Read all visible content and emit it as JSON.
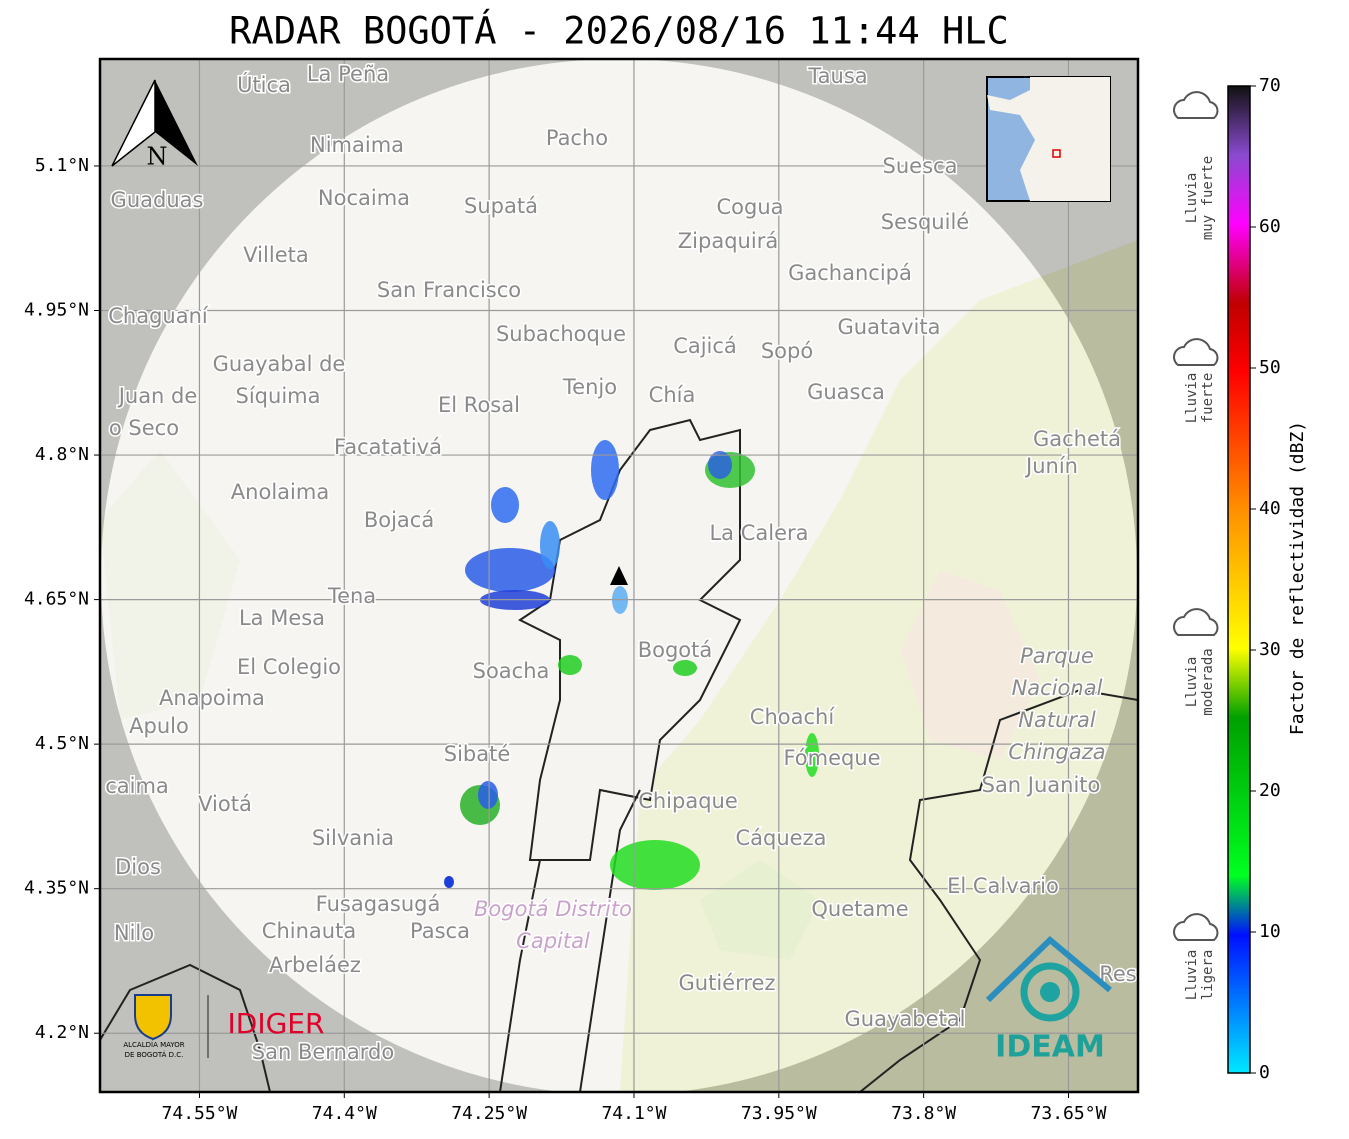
{
  "title": "RADAR BOGOTÁ - 2026/08/16 11:44 HLC",
  "map": {
    "xlim": [
      -74.653,
      -73.578
    ],
    "ylim": [
      4.139,
      5.211
    ],
    "xticks": [
      {
        "value": -74.55,
        "label": "74.55°W"
      },
      {
        "value": -74.4,
        "label": "74.4°W"
      },
      {
        "value": -74.25,
        "label": "74.25°W"
      },
      {
        "value": -74.1,
        "label": "74.1°W"
      },
      {
        "value": -73.95,
        "label": "73.95°W"
      },
      {
        "value": -73.8,
        "label": "73.8°W"
      },
      {
        "value": -73.65,
        "label": "73.65°W"
      }
    ],
    "yticks": [
      {
        "value": 5.1,
        "label": "5.1°N"
      },
      {
        "value": 4.95,
        "label": "4.95°N"
      },
      {
        "value": 4.8,
        "label": "4.8°N"
      },
      {
        "value": 4.65,
        "label": "4.65°N"
      },
      {
        "value": 4.5,
        "label": "4.5°N"
      },
      {
        "value": 4.35,
        "label": "4.35°N"
      },
      {
        "value": 4.2,
        "label": "4.2°N"
      }
    ],
    "grid": true,
    "north_label": "N",
    "places": [
      "Útica",
      "La Peña",
      "Tausa",
      "Pacho",
      "Nimaima",
      "Guaduas",
      "Nocaima",
      "Supatá",
      "Cogua",
      "Suesca",
      "Sesquilé",
      "Zipaquirá",
      "Villeta",
      "Gachancipá",
      "San Francisco",
      "Chaguaní",
      "Guatavita",
      "Subachoque",
      "Cajicá",
      "Sopó",
      "Guayabal de",
      "Síquima",
      "Tenjo",
      "Chía",
      "Guasca",
      "Juan de",
      "o Seco",
      "El Rosal",
      "Facatativá",
      "Gachetá",
      "Junín",
      "Anolaima",
      "Bojacá",
      "La Calera",
      "Tena",
      "La Mesa",
      "El Colegio",
      "Soacha",
      "Bogotá",
      "Anapoima",
      "Apulo",
      "Choachí",
      "Fómeque",
      "Sibaté",
      "San Juanito",
      "caima",
      "Viotá",
      "Chipaque",
      "Silvania",
      "Cáqueza",
      "Dios",
      "El Calvario",
      "Fusagasugá",
      "Quetame",
      "Nilo",
      "Chinauta",
      "Pasca",
      "Arbeláez",
      "Gutiérrez",
      "Guayabetal",
      "San Bernardo",
      "Res"
    ],
    "park_label": [
      "Parque",
      "Nacional",
      "Natural",
      "Chingaza"
    ],
    "district_label": [
      "Bogotá Distrito",
      "Capital"
    ]
  },
  "colorbar": {
    "label": "Factor de reflectividad (dBZ)",
    "lim": [
      0,
      70
    ],
    "ticks": [
      0,
      10,
      20,
      30,
      40,
      50,
      60,
      70
    ]
  },
  "rain_categories": [
    [
      "Lluvia",
      "muy fuerte"
    ],
    [
      "Lluvia",
      "fuerte"
    ],
    [
      "Lluvia",
      "moderada"
    ],
    [
      "Lluvia",
      "ligera"
    ]
  ],
  "logos": {
    "idiger": "IDIGER",
    "alcaldia": [
      "ALCALDÍA MAYOR",
      "DE BOGOTÁ D.C."
    ],
    "ideam": "IDEAM"
  }
}
